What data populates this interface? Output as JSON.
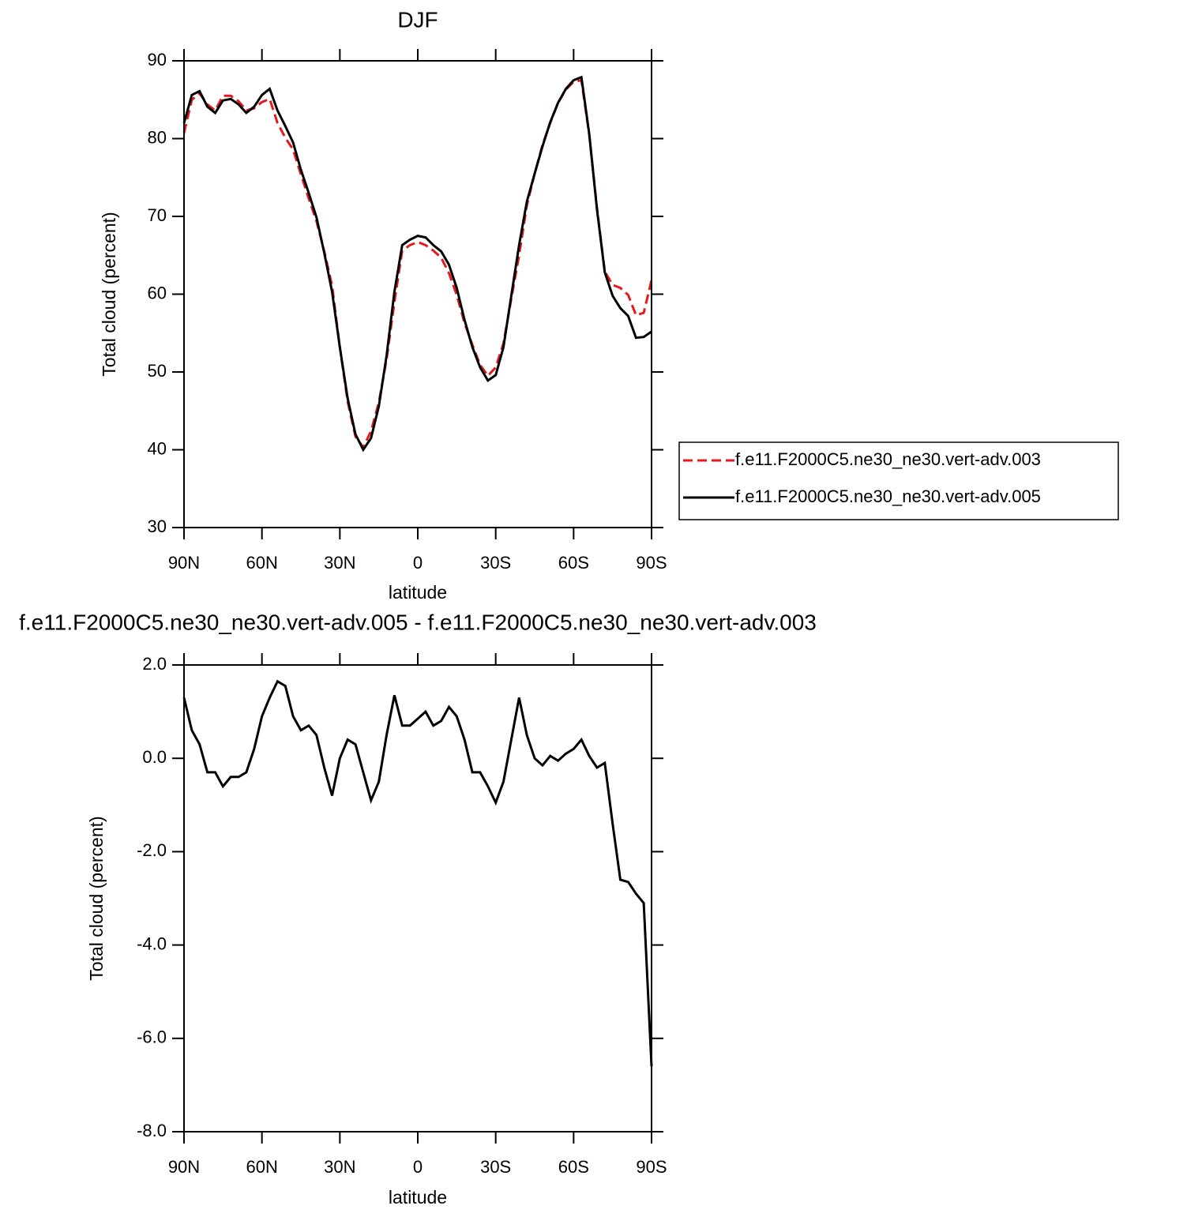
{
  "chart_data": [
    {
      "type": "line",
      "title": "DJF",
      "ylabel": "Total cloud (percent)",
      "xlabel": "latitude",
      "x": [
        90,
        87,
        84,
        81,
        78,
        75,
        72,
        69,
        66,
        63,
        60,
        57,
        54,
        51,
        48,
        45,
        42,
        39,
        36,
        33,
        30,
        27,
        24,
        21,
        18,
        15,
        12,
        9,
        6,
        3,
        0,
        -3,
        -6,
        -9,
        -12,
        -15,
        -18,
        -21,
        -24,
        -27,
        -30,
        -33,
        -36,
        -39,
        -42,
        -45,
        -48,
        -51,
        -54,
        -57,
        -60,
        -63,
        -66,
        -69,
        -72,
        -75,
        -78,
        -81,
        -84,
        -87,
        -90
      ],
      "xlim": [
        90,
        -90
      ],
      "xticks": [
        {
          "value": 90,
          "label": "90N"
        },
        {
          "value": 60,
          "label": "60N"
        },
        {
          "value": 30,
          "label": "30N"
        },
        0,
        {
          "value": -30,
          "label": "30S"
        },
        {
          "value": -60,
          "label": "60S"
        },
        {
          "value": -90,
          "label": "90S"
        }
      ],
      "ylim": [
        30,
        90
      ],
      "yticks": [
        30,
        40,
        50,
        60,
        70,
        80,
        90
      ],
      "legend": "right",
      "series": [
        {
          "name": "f.e11.F2000C5.ne30_ne30.vert-adv.003",
          "color": "#e41a1c",
          "dash": "dashed",
          "values": [
            80.7,
            85.0,
            85.8,
            84.4,
            83.6,
            85.5,
            85.5,
            84.8,
            83.6,
            83.9,
            84.7,
            85.1,
            82.0,
            80.1,
            78.6,
            75.4,
            72.3,
            69.4,
            65.5,
            61.1,
            53.2,
            46.2,
            41.7,
            40.3,
            42.4,
            46.1,
            51.6,
            59.0,
            65.6,
            66.3,
            66.7,
            66.3,
            65.6,
            64.7,
            62.7,
            59.9,
            56.3,
            53.5,
            50.9,
            49.5,
            50.6,
            53.7,
            59.4,
            65.0,
            71.4,
            75.5,
            79.2,
            82.0,
            84.6,
            86.3,
            87.3,
            87.5,
            80.5,
            71.1,
            62.9,
            61.2,
            60.8,
            59.9,
            57.3,
            57.6,
            61.8
          ]
        },
        {
          "name": "f.e11.F2000C5.ne30_ne30.vert-adv.005",
          "color": "#000000",
          "dash": "solid",
          "values": [
            82.0,
            85.6,
            86.1,
            84.1,
            83.3,
            84.9,
            85.1,
            84.4,
            83.3,
            84.1,
            85.6,
            86.4,
            83.6,
            81.6,
            79.5,
            76.0,
            73.0,
            69.9,
            65.3,
            60.3,
            53.2,
            46.6,
            42.0,
            40.0,
            41.5,
            45.6,
            52.1,
            60.3,
            66.3,
            67.0,
            67.5,
            67.3,
            66.3,
            65.5,
            63.8,
            60.8,
            56.7,
            53.2,
            50.6,
            48.9,
            49.6,
            53.2,
            59.8,
            66.3,
            71.9,
            75.5,
            79.0,
            82.1,
            84.6,
            86.4,
            87.5,
            87.9,
            80.6,
            70.9,
            62.8,
            59.8,
            58.2,
            57.2,
            54.4,
            54.5,
            55.2
          ]
        }
      ]
    },
    {
      "type": "line",
      "title": "f.e11.F2000C5.ne30_ne30.vert-adv.005 - f.e11.F2000C5.ne30_ne30.vert-adv.003",
      "ylabel": "Total cloud (percent)",
      "xlabel": "latitude",
      "x": [
        90,
        87,
        84,
        81,
        78,
        75,
        72,
        69,
        66,
        63,
        60,
        57,
        54,
        51,
        48,
        45,
        42,
        39,
        36,
        33,
        30,
        27,
        24,
        21,
        18,
        15,
        12,
        9,
        6,
        3,
        0,
        -3,
        -6,
        -9,
        -12,
        -15,
        -18,
        -21,
        -24,
        -27,
        -30,
        -33,
        -36,
        -39,
        -42,
        -45,
        -48,
        -51,
        -54,
        -57,
        -60,
        -63,
        -66,
        -69,
        -72,
        -75,
        -78,
        -81,
        -84,
        -87,
        -90
      ],
      "xlim": [
        90,
        -90
      ],
      "xticks": [
        {
          "value": 90,
          "label": "90N"
        },
        {
          "value": 60,
          "label": "60N"
        },
        {
          "value": 30,
          "label": "30N"
        },
        0,
        {
          "value": -30,
          "label": "30S"
        },
        {
          "value": -60,
          "label": "60S"
        },
        {
          "value": -90,
          "label": "90S"
        }
      ],
      "ylim": [
        -8,
        2
      ],
      "yticks": [
        {
          "value": -8,
          "label": "-8.0"
        },
        {
          "value": -6,
          "label": "-6.0"
        },
        {
          "value": -4,
          "label": "-4.0"
        },
        {
          "value": -2,
          "label": "-2.0"
        },
        {
          "value": 0,
          "label": "0.0"
        },
        {
          "value": 2,
          "label": "2.0"
        }
      ],
      "series": [
        {
          "color": "#000000",
          "dash": "solid",
          "values": [
            1.3,
            0.6,
            0.3,
            -0.3,
            -0.3,
            -0.6,
            -0.4,
            -0.4,
            -0.3,
            0.2,
            0.9,
            1.3,
            1.65,
            1.55,
            0.9,
            0.6,
            0.7,
            0.5,
            -0.2,
            -0.8,
            0.0,
            0.4,
            0.3,
            -0.3,
            -0.9,
            -0.5,
            0.5,
            1.35,
            0.7,
            0.7,
            0.85,
            1.0,
            0.7,
            0.8,
            1.1,
            0.9,
            0.4,
            -0.3,
            -0.3,
            -0.6,
            -0.95,
            -0.5,
            0.4,
            1.3,
            0.5,
            0.0,
            -0.15,
            0.05,
            -0.05,
            0.1,
            0.2,
            0.4,
            0.05,
            -0.2,
            -0.1,
            -1.4,
            -2.6,
            -2.65,
            -2.9,
            -3.1,
            -6.6
          ]
        }
      ]
    }
  ]
}
